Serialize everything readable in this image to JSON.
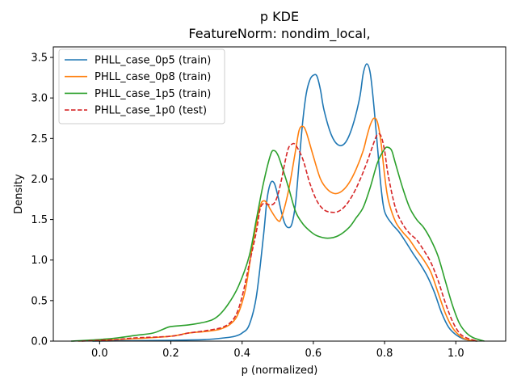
{
  "chart_data": {
    "type": "line",
    "title": "p KDE",
    "subtitle": "FeatureNorm: nondim_local,",
    "xlabel": "p (normalized)",
    "ylabel": "Density",
    "xlim": [
      -0.13,
      1.14
    ],
    "ylim": [
      0,
      3.63
    ],
    "xticks": [
      0.0,
      0.2,
      0.4,
      0.6,
      0.8,
      1.0
    ],
    "xtick_labels": [
      "0.0",
      "0.2",
      "0.4",
      "0.6",
      "0.8",
      "1.0"
    ],
    "yticks": [
      0.0,
      0.5,
      1.0,
      1.5,
      2.0,
      2.5,
      3.0,
      3.5
    ],
    "ytick_labels": [
      "0.0",
      "0.5",
      "1.0",
      "1.5",
      "2.0",
      "2.5",
      "3.0",
      "3.5"
    ],
    "grid": false,
    "legend_position": "top-left",
    "series": [
      {
        "name": "PHLL_case_0p5 (train)",
        "color": "#1f77b4",
        "dash": "solid",
        "points": [
          [
            -0.02,
            0
          ],
          [
            0.1,
            0.005
          ],
          [
            0.2,
            0.01
          ],
          [
            0.3,
            0.02
          ],
          [
            0.35,
            0.04
          ],
          [
            0.38,
            0.06
          ],
          [
            0.4,
            0.1
          ],
          [
            0.42,
            0.2
          ],
          [
            0.44,
            0.55
          ],
          [
            0.46,
            1.3
          ],
          [
            0.47,
            1.75
          ],
          [
            0.48,
            1.95
          ],
          [
            0.49,
            1.95
          ],
          [
            0.5,
            1.8
          ],
          [
            0.51,
            1.6
          ],
          [
            0.52,
            1.45
          ],
          [
            0.53,
            1.4
          ],
          [
            0.54,
            1.45
          ],
          [
            0.55,
            1.7
          ],
          [
            0.56,
            2.2
          ],
          [
            0.57,
            2.7
          ],
          [
            0.58,
            3.05
          ],
          [
            0.59,
            3.22
          ],
          [
            0.6,
            3.28
          ],
          [
            0.61,
            3.27
          ],
          [
            0.62,
            3.1
          ],
          [
            0.63,
            2.85
          ],
          [
            0.65,
            2.55
          ],
          [
            0.67,
            2.42
          ],
          [
            0.69,
            2.45
          ],
          [
            0.71,
            2.65
          ],
          [
            0.73,
            3.0
          ],
          [
            0.74,
            3.3
          ],
          [
            0.75,
            3.42
          ],
          [
            0.76,
            3.3
          ],
          [
            0.77,
            2.9
          ],
          [
            0.78,
            2.4
          ],
          [
            0.79,
            1.9
          ],
          [
            0.8,
            1.6
          ],
          [
            0.82,
            1.45
          ],
          [
            0.84,
            1.35
          ],
          [
            0.86,
            1.22
          ],
          [
            0.88,
            1.08
          ],
          [
            0.9,
            0.95
          ],
          [
            0.92,
            0.8
          ],
          [
            0.94,
            0.6
          ],
          [
            0.96,
            0.35
          ],
          [
            0.98,
            0.17
          ],
          [
            1.0,
            0.08
          ],
          [
            1.02,
            0.03
          ],
          [
            1.04,
            0.01
          ],
          [
            1.06,
            0
          ]
        ]
      },
      {
        "name": "PHLL_case_0p8 (train)",
        "color": "#ff7f0e",
        "dash": "solid",
        "points": [
          [
            -0.06,
            0
          ],
          [
            0.0,
            0.01
          ],
          [
            0.1,
            0.03
          ],
          [
            0.2,
            0.06
          ],
          [
            0.25,
            0.1
          ],
          [
            0.3,
            0.12
          ],
          [
            0.34,
            0.15
          ],
          [
            0.37,
            0.22
          ],
          [
            0.39,
            0.35
          ],
          [
            0.41,
            0.65
          ],
          [
            0.43,
            1.2
          ],
          [
            0.45,
            1.65
          ],
          [
            0.46,
            1.73
          ],
          [
            0.47,
            1.7
          ],
          [
            0.48,
            1.62
          ],
          [
            0.5,
            1.49
          ],
          [
            0.51,
            1.52
          ],
          [
            0.53,
            1.85
          ],
          [
            0.55,
            2.35
          ],
          [
            0.56,
            2.6
          ],
          [
            0.57,
            2.65
          ],
          [
            0.58,
            2.58
          ],
          [
            0.6,
            2.28
          ],
          [
            0.62,
            2.0
          ],
          [
            0.64,
            1.87
          ],
          [
            0.66,
            1.82
          ],
          [
            0.68,
            1.85
          ],
          [
            0.7,
            1.95
          ],
          [
            0.72,
            2.12
          ],
          [
            0.74,
            2.35
          ],
          [
            0.75,
            2.52
          ],
          [
            0.76,
            2.67
          ],
          [
            0.77,
            2.75
          ],
          [
            0.78,
            2.7
          ],
          [
            0.79,
            2.45
          ],
          [
            0.8,
            2.05
          ],
          [
            0.81,
            1.75
          ],
          [
            0.83,
            1.48
          ],
          [
            0.85,
            1.35
          ],
          [
            0.87,
            1.25
          ],
          [
            0.89,
            1.12
          ],
          [
            0.91,
            1.0
          ],
          [
            0.93,
            0.85
          ],
          [
            0.95,
            0.6
          ],
          [
            0.97,
            0.35
          ],
          [
            0.99,
            0.17
          ],
          [
            1.01,
            0.07
          ],
          [
            1.03,
            0.02
          ],
          [
            1.06,
            0
          ]
        ]
      },
      {
        "name": "PHLL_case_1p5 (train)",
        "color": "#2ca02c",
        "dash": "solid",
        "points": [
          [
            -0.08,
            0
          ],
          [
            0.0,
            0.02
          ],
          [
            0.05,
            0.04
          ],
          [
            0.1,
            0.07
          ],
          [
            0.15,
            0.1
          ],
          [
            0.18,
            0.15
          ],
          [
            0.2,
            0.18
          ],
          [
            0.25,
            0.2
          ],
          [
            0.3,
            0.24
          ],
          [
            0.33,
            0.3
          ],
          [
            0.36,
            0.45
          ],
          [
            0.39,
            0.68
          ],
          [
            0.42,
            1.05
          ],
          [
            0.44,
            1.5
          ],
          [
            0.46,
            1.95
          ],
          [
            0.48,
            2.3
          ],
          [
            0.49,
            2.35
          ],
          [
            0.5,
            2.3
          ],
          [
            0.51,
            2.18
          ],
          [
            0.53,
            1.9
          ],
          [
            0.55,
            1.6
          ],
          [
            0.57,
            1.45
          ],
          [
            0.59,
            1.36
          ],
          [
            0.61,
            1.3
          ],
          [
            0.64,
            1.27
          ],
          [
            0.67,
            1.3
          ],
          [
            0.7,
            1.4
          ],
          [
            0.72,
            1.52
          ],
          [
            0.74,
            1.65
          ],
          [
            0.76,
            1.9
          ],
          [
            0.78,
            2.2
          ],
          [
            0.8,
            2.37
          ],
          [
            0.81,
            2.39
          ],
          [
            0.82,
            2.35
          ],
          [
            0.83,
            2.2
          ],
          [
            0.85,
            1.9
          ],
          [
            0.87,
            1.65
          ],
          [
            0.89,
            1.5
          ],
          [
            0.91,
            1.4
          ],
          [
            0.93,
            1.25
          ],
          [
            0.95,
            1.05
          ],
          [
            0.97,
            0.75
          ],
          [
            0.99,
            0.45
          ],
          [
            1.01,
            0.22
          ],
          [
            1.03,
            0.1
          ],
          [
            1.05,
            0.04
          ],
          [
            1.08,
            0
          ]
        ]
      },
      {
        "name": "PHLL_case_1p0 (test)",
        "color": "#d62728",
        "dash": "dashed",
        "points": [
          [
            -0.05,
            0
          ],
          [
            0.0,
            0.01
          ],
          [
            0.05,
            0.02
          ],
          [
            0.1,
            0.04
          ],
          [
            0.2,
            0.06
          ],
          [
            0.25,
            0.1
          ],
          [
            0.3,
            0.13
          ],
          [
            0.35,
            0.18
          ],
          [
            0.38,
            0.3
          ],
          [
            0.4,
            0.55
          ],
          [
            0.42,
            0.95
          ],
          [
            0.44,
            1.35
          ],
          [
            0.45,
            1.62
          ],
          [
            0.46,
            1.7
          ],
          [
            0.47,
            1.69
          ],
          [
            0.48,
            1.68
          ],
          [
            0.49,
            1.7
          ],
          [
            0.5,
            1.8
          ],
          [
            0.51,
            1.98
          ],
          [
            0.52,
            2.2
          ],
          [
            0.53,
            2.38
          ],
          [
            0.54,
            2.43
          ],
          [
            0.55,
            2.42
          ],
          [
            0.57,
            2.25
          ],
          [
            0.59,
            1.95
          ],
          [
            0.61,
            1.73
          ],
          [
            0.63,
            1.62
          ],
          [
            0.65,
            1.59
          ],
          [
            0.67,
            1.6
          ],
          [
            0.69,
            1.67
          ],
          [
            0.71,
            1.8
          ],
          [
            0.73,
            1.98
          ],
          [
            0.75,
            2.2
          ],
          [
            0.77,
            2.45
          ],
          [
            0.78,
            2.55
          ],
          [
            0.79,
            2.53
          ],
          [
            0.8,
            2.35
          ],
          [
            0.81,
            2.05
          ],
          [
            0.83,
            1.65
          ],
          [
            0.85,
            1.45
          ],
          [
            0.87,
            1.33
          ],
          [
            0.89,
            1.25
          ],
          [
            0.91,
            1.12
          ],
          [
            0.93,
            0.97
          ],
          [
            0.95,
            0.75
          ],
          [
            0.97,
            0.48
          ],
          [
            0.99,
            0.25
          ],
          [
            1.01,
            0.1
          ],
          [
            1.03,
            0.04
          ],
          [
            1.06,
            0
          ]
        ]
      }
    ]
  }
}
